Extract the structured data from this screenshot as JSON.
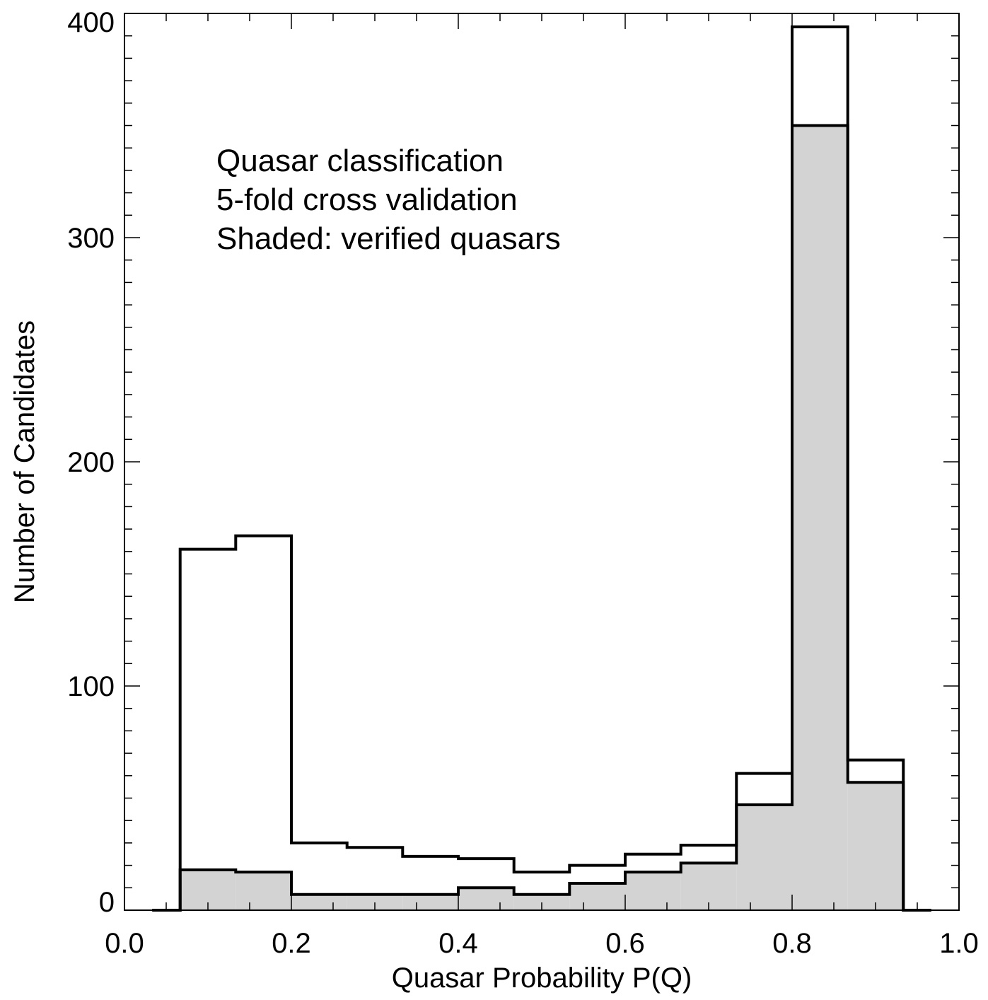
{
  "chart_data": {
    "type": "histogram",
    "title": "",
    "xlabel": "Quasar Probability P(Q)",
    "ylabel": "Number of Candidates",
    "xlim": [
      0.0,
      1.0
    ],
    "ylim": [
      0,
      400
    ],
    "x_ticks": [
      {
        "value": 0.0,
        "label": "0.0"
      },
      {
        "value": 0.2,
        "label": "0.2"
      },
      {
        "value": 0.4,
        "label": "0.4"
      },
      {
        "value": 0.6,
        "label": "0.6"
      },
      {
        "value": 0.8,
        "label": "0.8"
      },
      {
        "value": 1.0,
        "label": "1.0"
      }
    ],
    "y_ticks": [
      {
        "value": 0,
        "label": "0"
      },
      {
        "value": 100,
        "label": "100"
      },
      {
        "value": 200,
        "label": "200"
      },
      {
        "value": 300,
        "label": "300"
      },
      {
        "value": 400,
        "label": "400"
      }
    ],
    "grid": false,
    "bins": [
      {
        "x0": 0.0333,
        "x1": 0.0667
      },
      {
        "x0": 0.0667,
        "x1": 0.1333
      },
      {
        "x0": 0.1333,
        "x1": 0.2
      },
      {
        "x0": 0.2,
        "x1": 0.2667
      },
      {
        "x0": 0.2667,
        "x1": 0.3333
      },
      {
        "x0": 0.3333,
        "x1": 0.4
      },
      {
        "x0": 0.4,
        "x1": 0.4667
      },
      {
        "x0": 0.4667,
        "x1": 0.5333
      },
      {
        "x0": 0.5333,
        "x1": 0.6
      },
      {
        "x0": 0.6,
        "x1": 0.6667
      },
      {
        "x0": 0.6667,
        "x1": 0.7333
      },
      {
        "x0": 0.7333,
        "x1": 0.8
      },
      {
        "x0": 0.8,
        "x1": 0.8667
      },
      {
        "x0": 0.8667,
        "x1": 0.9333
      },
      {
        "x0": 0.9333,
        "x1": 0.9667
      }
    ],
    "series": [
      {
        "name": "",
        "style": "outline",
        "values": [
          0,
          161,
          167,
          30,
          28,
          24,
          23,
          17,
          20,
          25,
          29,
          61,
          394,
          67,
          0
        ]
      },
      {
        "name": "",
        "style": "shaded",
        "color": "#d3d3d3",
        "values": [
          0,
          18,
          17,
          7,
          7,
          7,
          10,
          7,
          12,
          17,
          21,
          47,
          350,
          57,
          0
        ]
      }
    ],
    "annotations": [
      "Quasar classification",
      "5-fold cross validation",
      "Shaded: verified quasars"
    ]
  }
}
